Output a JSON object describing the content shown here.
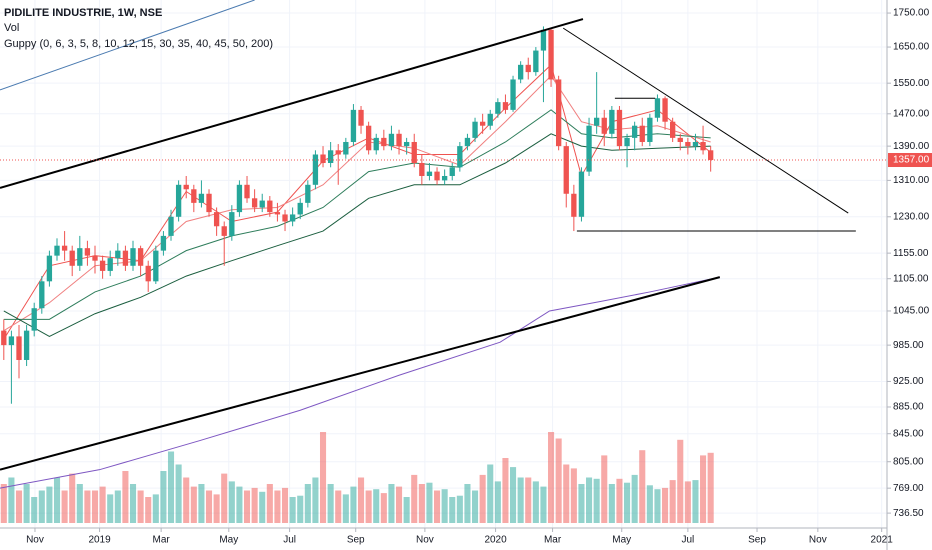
{
  "chart_data": {
    "type": "candlestick",
    "title": "PIDILITE INDUSTRIE, 1W, NSE",
    "legend_items": [
      "Vol",
      "Guppy (0, 6, 3, 5, 8, 10, 12, 15, 30, 35, 40, 45, 50, 200)"
    ],
    "log_scale": true,
    "grid": true,
    "up_color": "#26a69a",
    "down_color": "#ef5350",
    "xlim": [
      -0.5,
      116.2
    ],
    "xticks": [
      {
        "value": 4.1,
        "label": "Nov"
      },
      {
        "value": 12.6,
        "label": "2019"
      },
      {
        "value": 20.7,
        "label": "Mar"
      },
      {
        "value": 29.6,
        "label": "May"
      },
      {
        "value": 37.6,
        "label": "Jul"
      },
      {
        "value": 46.3,
        "label": "Sep"
      },
      {
        "value": 55.4,
        "label": "Nov"
      },
      {
        "value": 64.7,
        "label": "2020"
      },
      {
        "value": 72.2,
        "label": "Mar"
      },
      {
        "value": 81.3,
        "label": "May"
      },
      {
        "value": 90,
        "label": "Jul"
      },
      {
        "value": 99.1,
        "label": "Sep"
      },
      {
        "value": 107.1,
        "label": "Nov"
      },
      {
        "value": 115.5,
        "label": "2021"
      }
    ],
    "ylim": [
      724,
      1790
    ],
    "yticks": [
      {
        "value": 736.5,
        "label": "736.50"
      },
      {
        "value": 769,
        "label": "769.00"
      },
      {
        "value": 805,
        "label": "805.00"
      },
      {
        "value": 845,
        "label": "845.00"
      },
      {
        "value": 885,
        "label": "885.00"
      },
      {
        "value": 925,
        "label": "925.00"
      },
      {
        "value": 985,
        "label": "985.00"
      },
      {
        "value": 1045,
        "label": "1045.00"
      },
      {
        "value": 1105,
        "label": "1105.00"
      },
      {
        "value": 1155,
        "label": "1155.00"
      },
      {
        "value": 1230,
        "label": "1230.00"
      },
      {
        "value": 1310,
        "label": "1310.00"
      },
      {
        "value": 1390,
        "label": "1390.00"
      },
      {
        "value": 1470,
        "label": "1470.00"
      },
      {
        "value": 1550,
        "label": "1550.00"
      },
      {
        "value": 1650,
        "label": "1650.00"
      },
      {
        "value": 1750,
        "label": "1750.00"
      }
    ],
    "ohlc": [
      [
        1010,
        1030,
        960,
        985
      ],
      [
        985,
        1010,
        890,
        1000
      ],
      [
        1000,
        1020,
        930,
        960
      ],
      [
        960,
        1020,
        950,
        1010
      ],
      [
        1010,
        1060,
        1000,
        1050
      ],
      [
        1050,
        1110,
        1040,
        1100
      ],
      [
        1100,
        1160,
        1090,
        1150
      ],
      [
        1150,
        1185,
        1140,
        1170
      ],
      [
        1170,
        1200,
        1140,
        1160
      ],
      [
        1160,
        1170,
        1110,
        1130
      ],
      [
        1130,
        1190,
        1120,
        1165
      ],
      [
        1165,
        1180,
        1130,
        1150
      ],
      [
        1150,
        1170,
        1115,
        1140
      ],
      [
        1140,
        1150,
        1105,
        1120
      ],
      [
        1120,
        1160,
        1110,
        1145
      ],
      [
        1145,
        1175,
        1130,
        1160
      ],
      [
        1160,
        1170,
        1120,
        1130
      ],
      [
        1130,
        1180,
        1120,
        1165
      ],
      [
        1165,
        1170,
        1110,
        1130
      ],
      [
        1130,
        1140,
        1080,
        1100
      ],
      [
        1100,
        1170,
        1095,
        1160
      ],
      [
        1160,
        1200,
        1150,
        1190
      ],
      [
        1190,
        1245,
        1180,
        1230
      ],
      [
        1230,
        1310,
        1220,
        1300
      ],
      [
        1300,
        1320,
        1270,
        1290
      ],
      [
        1290,
        1300,
        1240,
        1260
      ],
      [
        1260,
        1310,
        1250,
        1280
      ],
      [
        1280,
        1290,
        1230,
        1240
      ],
      [
        1240,
        1250,
        1190,
        1210
      ],
      [
        1210,
        1220,
        1130,
        1190
      ],
      [
        1190,
        1255,
        1180,
        1240
      ],
      [
        1240,
        1310,
        1230,
        1300
      ],
      [
        1300,
        1320,
        1260,
        1270
      ],
      [
        1270,
        1290,
        1240,
        1250
      ],
      [
        1250,
        1280,
        1240,
        1265
      ],
      [
        1265,
        1275,
        1230,
        1240
      ],
      [
        1240,
        1260,
        1220,
        1235
      ],
      [
        1235,
        1245,
        1200,
        1220
      ],
      [
        1220,
        1250,
        1210,
        1235
      ],
      [
        1235,
        1270,
        1225,
        1260
      ],
      [
        1260,
        1310,
        1250,
        1300
      ],
      [
        1300,
        1380,
        1290,
        1370
      ],
      [
        1370,
        1390,
        1340,
        1350
      ],
      [
        1350,
        1400,
        1340,
        1380
      ],
      [
        1380,
        1395,
        1300,
        1370
      ],
      [
        1370,
        1410,
        1360,
        1400
      ],
      [
        1400,
        1495,
        1390,
        1480
      ],
      [
        1480,
        1490,
        1420,
        1440
      ],
      [
        1440,
        1450,
        1370,
        1380
      ],
      [
        1380,
        1420,
        1370,
        1410
      ],
      [
        1410,
        1430,
        1380,
        1390
      ],
      [
        1390,
        1440,
        1380,
        1420
      ],
      [
        1420,
        1430,
        1370,
        1390
      ],
      [
        1390,
        1410,
        1370,
        1400
      ],
      [
        1400,
        1420,
        1340,
        1350
      ],
      [
        1350,
        1370,
        1300,
        1320
      ],
      [
        1320,
        1350,
        1310,
        1330
      ],
      [
        1330,
        1340,
        1300,
        1310
      ],
      [
        1310,
        1335,
        1300,
        1320
      ],
      [
        1320,
        1350,
        1310,
        1340
      ],
      [
        1340,
        1400,
        1330,
        1390
      ],
      [
        1390,
        1420,
        1380,
        1410
      ],
      [
        1410,
        1460,
        1400,
        1450
      ],
      [
        1450,
        1470,
        1420,
        1440
      ],
      [
        1440,
        1480,
        1430,
        1470
      ],
      [
        1470,
        1510,
        1460,
        1500
      ],
      [
        1500,
        1520,
        1470,
        1480
      ],
      [
        1480,
        1570,
        1475,
        1560
      ],
      [
        1560,
        1610,
        1550,
        1600
      ],
      [
        1600,
        1620,
        1560,
        1580
      ],
      [
        1580,
        1650,
        1570,
        1640
      ],
      [
        1640,
        1710,
        1500,
        1700
      ],
      [
        1700,
        1705,
        1540,
        1560
      ],
      [
        1560,
        1570,
        1380,
        1390
      ],
      [
        1390,
        1400,
        1250,
        1280
      ],
      [
        1280,
        1300,
        1200,
        1230
      ],
      [
        1230,
        1340,
        1220,
        1330
      ],
      [
        1330,
        1460,
        1320,
        1440
      ],
      [
        1440,
        1580,
        1420,
        1460
      ],
      [
        1460,
        1480,
        1390,
        1420
      ],
      [
        1420,
        1490,
        1410,
        1480
      ],
      [
        1480,
        1490,
        1380,
        1390
      ],
      [
        1390,
        1420,
        1340,
        1410
      ],
      [
        1410,
        1450,
        1380,
        1440
      ],
      [
        1440,
        1460,
        1390,
        1400
      ],
      [
        1400,
        1470,
        1390,
        1460
      ],
      [
        1460,
        1520,
        1450,
        1510
      ],
      [
        1510,
        1515,
        1430,
        1450
      ],
      [
        1450,
        1460,
        1400,
        1410
      ],
      [
        1410,
        1420,
        1380,
        1400
      ],
      [
        1400,
        1410,
        1370,
        1390
      ],
      [
        1390,
        1420,
        1380,
        1400
      ],
      [
        1400,
        1440,
        1370,
        1380
      ],
      [
        1380,
        1390,
        1330,
        1357
      ]
    ],
    "volume": {
      "ylim": [
        0,
        1000
      ],
      "values": [
        300,
        350,
        250,
        300,
        200,
        250,
        280,
        350,
        250,
        380,
        300,
        250,
        250,
        280,
        220,
        250,
        400,
        300,
        250,
        200,
        220,
        400,
        550,
        450,
        350,
        280,
        300,
        250,
        220,
        380,
        320,
        280,
        250,
        270,
        240,
        300,
        250,
        270,
        200,
        210,
        300,
        350,
        700,
        300,
        250,
        220,
        280,
        350,
        250,
        260,
        230,
        300,
        280,
        200,
        370,
        300,
        310,
        250,
        260,
        200,
        210,
        300,
        250,
        370,
        450,
        320,
        500,
        430,
        350,
        350,
        320,
        280,
        700,
        650,
        450,
        420,
        300,
        350,
        340,
        520,
        300,
        340,
        310,
        370,
        560,
        290,
        260,
        270,
        330,
        640,
        320,
        330,
        520,
        540
      ]
    },
    "guppy": {
      "x": [
        0,
        6,
        12,
        18,
        24,
        30,
        36,
        42,
        48,
        54,
        60,
        66,
        72,
        76,
        80,
        86,
        93
      ],
      "series": [
        {
          "color": "#ef5350",
          "values": [
            995,
            1130,
            1150,
            1140,
            1285,
            1220,
            1240,
            1355,
            1410,
            1370,
            1370,
            1485,
            1600,
            1320,
            1450,
            1480,
            1375
          ]
        },
        {
          "color": "#f08080",
          "values": [
            1010,
            1060,
            1130,
            1140,
            1220,
            1245,
            1250,
            1300,
            1400,
            1385,
            1345,
            1450,
            1570,
            1450,
            1430,
            1440,
            1400
          ]
        },
        {
          "color": "#2e7d5b",
          "values": [
            1030,
            1030,
            1080,
            1110,
            1160,
            1190,
            1210,
            1250,
            1330,
            1350,
            1340,
            1400,
            1480,
            1420,
            1410,
            1420,
            1410
          ]
        },
        {
          "color": "#1b5e3f",
          "values": [
            1045,
            1000,
            1040,
            1070,
            1110,
            1140,
            1170,
            1200,
            1270,
            1300,
            1300,
            1350,
            1420,
            1390,
            1380,
            1385,
            1390
          ]
        }
      ]
    },
    "ma": {
      "color": "#7e57c2",
      "points": [
        [
          -0.5,
          769
        ],
        [
          12.6,
          794
        ],
        [
          25.8,
          835
        ],
        [
          39,
          880
        ],
        [
          52,
          935
        ],
        [
          65.3,
          990
        ],
        [
          71.8,
          1045
        ],
        [
          78.4,
          1062
        ],
        [
          85,
          1080
        ],
        [
          94.2,
          1108
        ]
      ]
    },
    "drawings": [
      {
        "color": "#000000",
        "bold": true,
        "points": [
          [
            -0.5,
            1293
          ],
          [
            76.2,
            1732
          ]
        ]
      },
      {
        "color": "#000000",
        "bold": true,
        "points": [
          [
            -0.5,
            794
          ],
          [
            94.2,
            1108
          ]
        ]
      },
      {
        "color": "#000000",
        "bold": false,
        "points": [
          [
            73.6,
            1705
          ],
          [
            111.1,
            1238
          ]
        ]
      },
      {
        "color": "#000000",
        "bold": false,
        "points": [
          [
            75.4,
            1200
          ],
          [
            112.1,
            1200
          ]
        ]
      },
      {
        "color": "#000000",
        "bold": false,
        "points": [
          [
            80.4,
            1510
          ],
          [
            85.7,
            1510
          ]
        ]
      },
      {
        "color": "#4a7ab0",
        "bold": false,
        "points": [
          [
            -0.5,
            1532
          ],
          [
            33,
            1790
          ]
        ]
      }
    ],
    "last_price": {
      "value": 1357,
      "label": "1357.00"
    }
  }
}
